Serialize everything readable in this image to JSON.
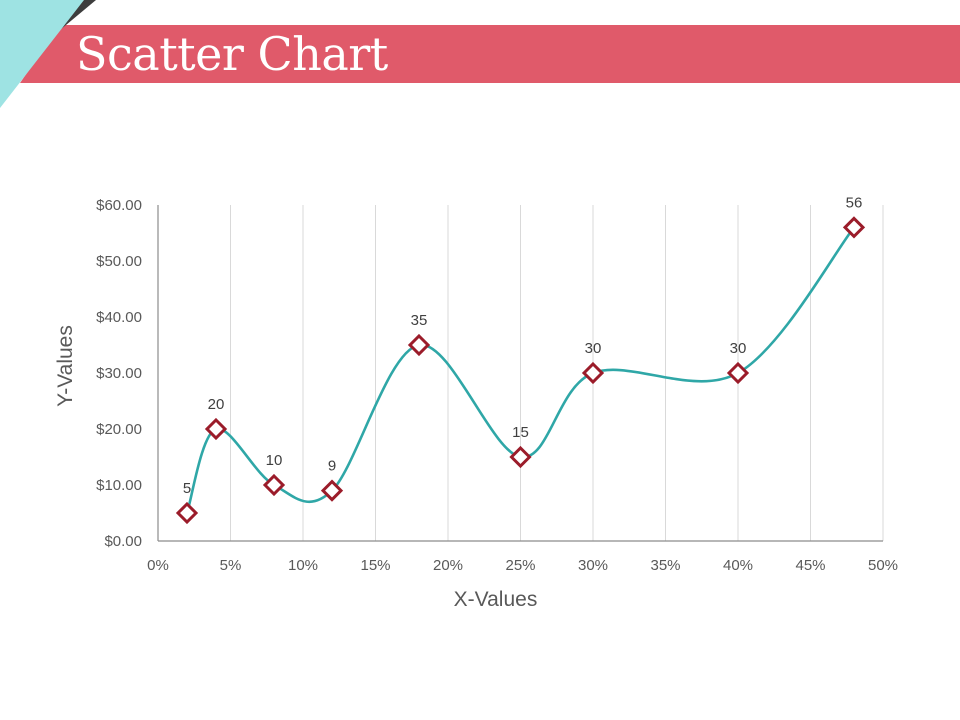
{
  "slide": {
    "title": "Scatter Chart",
    "colors": {
      "title_band": "#e05a6a",
      "accent_light": "#9ee3e3",
      "accent_dark": "#3d3d3d",
      "series_line": "#2fa7a7",
      "marker": "#9b1c2a",
      "gridline": "#d9d9d9",
      "axis": "#595959"
    }
  },
  "chart_data": {
    "type": "scatter",
    "title": "",
    "xlabel": "X-Values",
    "ylabel": "Y-Values",
    "xlim": [
      0,
      0.5
    ],
    "ylim": [
      0,
      60
    ],
    "x_ticks": [
      "0%",
      "5%",
      "10%",
      "15%",
      "20%",
      "25%",
      "30%",
      "35%",
      "40%",
      "45%",
      "50%"
    ],
    "y_ticks": [
      "$0.00",
      "$10.00",
      "$20.00",
      "$30.00",
      "$40.00",
      "$50.00",
      "$60.00"
    ],
    "grid": "vertical",
    "legend": "none",
    "smooth_line": true,
    "series": [
      {
        "x": [
          0.02,
          0.04,
          0.08,
          0.12,
          0.18,
          0.25,
          0.3,
          0.4,
          0.48
        ],
        "values": [
          5,
          20,
          10,
          9,
          35,
          15,
          30,
          30,
          56
        ],
        "labels": [
          "5",
          "20",
          "10",
          "9",
          "35",
          "15",
          "30",
          "30",
          "56"
        ]
      }
    ]
  }
}
